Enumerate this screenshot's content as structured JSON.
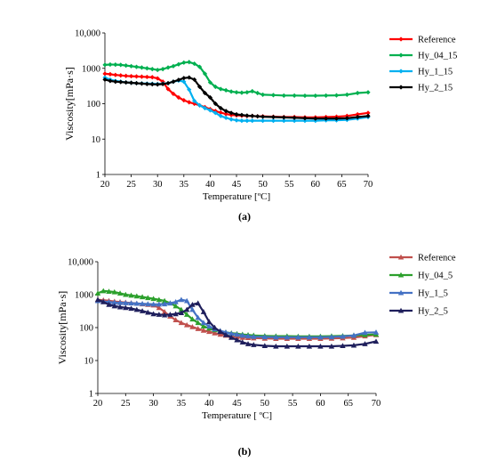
{
  "chart_data": [
    {
      "type": "line",
      "xlabel": "Temperature [ºC]",
      "ylabel": "Viscosity[mPa·s]",
      "ylog": true,
      "xlim": [
        20,
        70
      ],
      "ylim": [
        1,
        10000
      ],
      "xticks": [
        "20",
        "25",
        "30",
        "35",
        "40",
        "45",
        "50",
        "55",
        "60",
        "65",
        "70"
      ],
      "yticks": [
        "1",
        "10",
        "100",
        "1000",
        "10,000"
      ],
      "grid": false,
      "legend": "right",
      "caption": "(a)",
      "series": [
        {
          "name": "Reference",
          "color": "#ff0000",
          "marker": "diamond",
          "x": [
            20,
            21,
            22,
            23,
            24,
            25,
            26,
            27,
            28,
            29,
            30,
            31,
            32,
            33,
            34,
            35,
            36,
            37,
            38,
            39,
            40,
            41,
            42,
            43,
            44,
            45,
            46,
            47,
            48,
            49,
            50,
            52,
            54,
            56,
            58,
            60,
            62,
            64,
            66,
            68,
            70
          ],
          "y": [
            700,
            680,
            650,
            630,
            610,
            600,
            590,
            580,
            570,
            560,
            520,
            420,
            260,
            190,
            150,
            125,
            110,
            100,
            90,
            80,
            70,
            62,
            56,
            51,
            48,
            47,
            46,
            45,
            45,
            44,
            44,
            43,
            42,
            42,
            41,
            41,
            42,
            43,
            45,
            50,
            55
          ]
        },
        {
          "name": "Hy_04_15",
          "color": "#00b050",
          "marker": "diamond",
          "x": [
            20,
            21,
            22,
            23,
            24,
            25,
            26,
            27,
            28,
            29,
            30,
            31,
            32,
            33,
            34,
            35,
            36,
            37,
            38,
            39,
            40,
            41,
            42,
            43,
            44,
            45,
            46,
            47,
            48,
            49,
            50,
            52,
            54,
            56,
            58,
            60,
            62,
            64,
            66,
            68,
            70
          ],
          "y": [
            1250,
            1280,
            1270,
            1250,
            1200,
            1150,
            1100,
            1050,
            1000,
            950,
            900,
            950,
            1050,
            1150,
            1300,
            1450,
            1500,
            1350,
            1100,
            700,
            400,
            300,
            260,
            240,
            220,
            210,
            205,
            210,
            225,
            200,
            180,
            175,
            170,
            170,
            168,
            168,
            170,
            172,
            180,
            200,
            210
          ]
        },
        {
          "name": "Hy_1_15",
          "color": "#00b0f0",
          "marker": "diamond",
          "x": [
            20,
            21,
            22,
            23,
            24,
            25,
            26,
            27,
            28,
            29,
            30,
            31,
            32,
            33,
            34,
            35,
            36,
            37,
            38,
            39,
            40,
            41,
            42,
            43,
            44,
            45,
            46,
            47,
            48,
            50,
            52,
            54,
            56,
            58,
            60,
            62,
            64,
            66,
            68,
            70
          ],
          "y": [
            550,
            480,
            440,
            420,
            400,
            390,
            380,
            375,
            370,
            365,
            360,
            370,
            380,
            420,
            450,
            420,
            250,
            120,
            90,
            75,
            65,
            55,
            45,
            40,
            36,
            34,
            33,
            33,
            33,
            33,
            33,
            33,
            33,
            33,
            33,
            34,
            34,
            35,
            38,
            42
          ]
        },
        {
          "name": "Hy_2_15",
          "color": "#000000",
          "marker": "diamond",
          "x": [
            20,
            21,
            22,
            23,
            24,
            25,
            26,
            27,
            28,
            29,
            30,
            31,
            32,
            33,
            34,
            35,
            36,
            37,
            38,
            39,
            40,
            41,
            42,
            43,
            44,
            45,
            46,
            47,
            48,
            49,
            50,
            52,
            54,
            56,
            58,
            60,
            62,
            64,
            66,
            68,
            70
          ],
          "y": [
            480,
            440,
            420,
            410,
            400,
            390,
            380,
            370,
            360,
            355,
            350,
            360,
            380,
            420,
            470,
            530,
            550,
            480,
            300,
            200,
            150,
            100,
            75,
            62,
            55,
            50,
            48,
            46,
            45,
            44,
            43,
            42,
            41,
            40,
            39,
            38,
            38,
            38,
            39,
            42,
            45
          ]
        }
      ]
    },
    {
      "type": "line",
      "xlabel": "Temperature [ ºC]",
      "ylabel": "Viscosity[mPa·s]",
      "ylog": true,
      "xlim": [
        20,
        70
      ],
      "ylim": [
        1,
        10000
      ],
      "xticks": [
        "20",
        "25",
        "30",
        "35",
        "40",
        "45",
        "50",
        "55",
        "60",
        "65",
        "70"
      ],
      "yticks": [
        "1",
        "10",
        "100",
        "1000",
        "10,000"
      ],
      "grid": false,
      "legend": "right",
      "caption": "(b)",
      "series": [
        {
          "name": "Reference",
          "color": "#c0504d",
          "marker": "triangle",
          "x": [
            20,
            21,
            22,
            23,
            24,
            25,
            26,
            27,
            28,
            29,
            30,
            31,
            32,
            33,
            34,
            35,
            36,
            37,
            38,
            39,
            40,
            41,
            42,
            43,
            44,
            45,
            46,
            47,
            48,
            50,
            52,
            54,
            56,
            58,
            60,
            62,
            64,
            66,
            68,
            70
          ],
          "y": [
            700,
            680,
            650,
            620,
            600,
            580,
            560,
            540,
            520,
            500,
            480,
            400,
            300,
            220,
            170,
            140,
            120,
            105,
            92,
            82,
            75,
            68,
            62,
            58,
            55,
            52,
            50,
            49,
            48,
            47,
            46,
            46,
            46,
            46,
            46,
            47,
            48,
            50,
            55,
            60
          ]
        },
        {
          "name": "Hy_04_5",
          "color": "#2ca02c",
          "marker": "triangle",
          "x": [
            20,
            21,
            22,
            23,
            24,
            25,
            26,
            27,
            28,
            29,
            30,
            31,
            32,
            33,
            34,
            35,
            36,
            37,
            38,
            39,
            40,
            41,
            42,
            43,
            44,
            45,
            46,
            47,
            48,
            50,
            52,
            54,
            56,
            58,
            60,
            62,
            64,
            66,
            68,
            70
          ],
          "y": [
            1100,
            1300,
            1250,
            1200,
            1100,
            1000,
            950,
            900,
            850,
            800,
            750,
            700,
            650,
            550,
            450,
            350,
            250,
            180,
            140,
            110,
            95,
            85,
            78,
            72,
            68,
            65,
            62,
            60,
            58,
            56,
            55,
            55,
            54,
            54,
            54,
            55,
            56,
            58,
            60,
            62
          ]
        },
        {
          "name": "Hy_1_5",
          "color": "#4472c4",
          "marker": "triangle",
          "x": [
            20,
            21,
            22,
            23,
            24,
            25,
            26,
            27,
            28,
            29,
            30,
            31,
            32,
            33,
            34,
            35,
            36,
            37,
            38,
            39,
            40,
            41,
            42,
            43,
            44,
            45,
            46,
            47,
            48,
            50,
            52,
            54,
            56,
            58,
            60,
            62,
            64,
            66,
            68,
            70
          ],
          "y": [
            650,
            620,
            600,
            580,
            570,
            560,
            550,
            540,
            530,
            520,
            510,
            510,
            520,
            550,
            600,
            700,
            650,
            350,
            200,
            140,
            110,
            90,
            80,
            72,
            66,
            62,
            58,
            55,
            53,
            52,
            51,
            51,
            51,
            51,
            51,
            52,
            54,
            58,
            70,
            72
          ]
        },
        {
          "name": "Hy_2_5",
          "color": "#1f1f5c",
          "marker": "triangle",
          "x": [
            20,
            21,
            22,
            23,
            24,
            25,
            26,
            27,
            28,
            29,
            30,
            31,
            32,
            33,
            34,
            35,
            36,
            37,
            38,
            39,
            40,
            41,
            42,
            43,
            44,
            45,
            46,
            47,
            48,
            50,
            52,
            54,
            56,
            58,
            60,
            62,
            64,
            66,
            68,
            70
          ],
          "y": [
            700,
            600,
            500,
            450,
            420,
            400,
            380,
            350,
            320,
            290,
            260,
            250,
            240,
            250,
            260,
            280,
            350,
            500,
            550,
            300,
            150,
            100,
            75,
            60,
            50,
            42,
            36,
            32,
            30,
            28,
            27,
            27,
            27,
            27,
            27,
            27,
            28,
            29,
            32,
            38
          ]
        }
      ]
    }
  ]
}
